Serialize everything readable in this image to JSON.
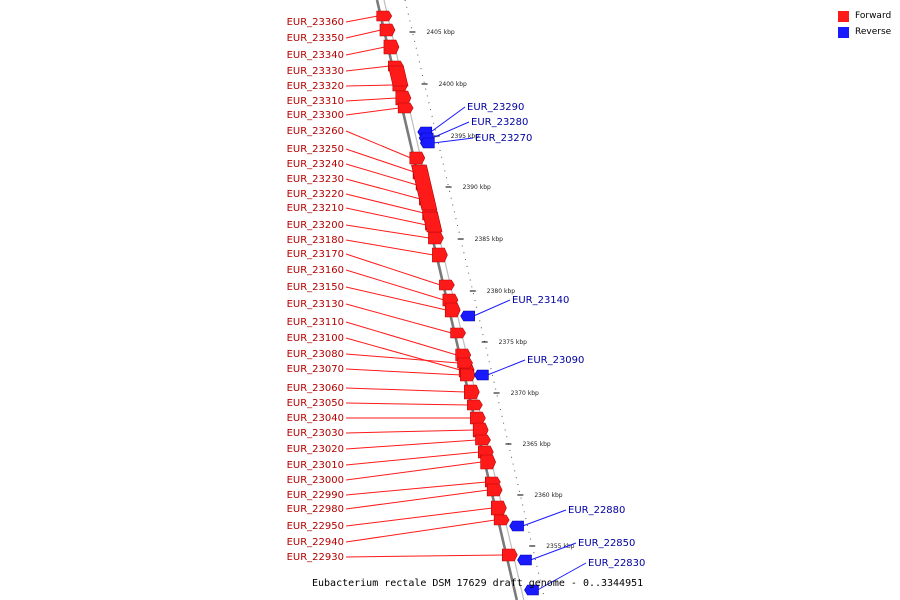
{
  "legend": {
    "forward_label": "Forward",
    "forward_color": "#ff1a1a",
    "reverse_label": "Reverse",
    "reverse_color": "#1a1aff"
  },
  "caption": {
    "organism": "Eubacterium rectale DSM 17629 draft genome",
    "range_text": "0..3344951"
  },
  "ticks": [
    "2405 kbp",
    "2400 kbp",
    "2395 kbp",
    "2390 kbp",
    "2385 kbp",
    "2380 kbp",
    "2375 kbp",
    "2370 kbp",
    "2365 kbp",
    "2360 kbp",
    "2355 kbp"
  ],
  "forward_genes": [
    "EUR_23360",
    "EUR_23350",
    "EUR_23340",
    "EUR_23330",
    "EUR_23320",
    "EUR_23310",
    "EUR_23300",
    "EUR_23260",
    "EUR_23250",
    "EUR_23240",
    "EUR_23230",
    "EUR_23220",
    "EUR_23210",
    "EUR_23200",
    "EUR_23180",
    "EUR_23170",
    "EUR_23160",
    "EUR_23150",
    "EUR_23130",
    "EUR_23110",
    "EUR_23100",
    "EUR_23080",
    "EUR_23070",
    "EUR_23060",
    "EUR_23050",
    "EUR_23040",
    "EUR_23030",
    "EUR_23020",
    "EUR_23010",
    "EUR_23000",
    "EUR_22990",
    "EUR_22980",
    "EUR_22950",
    "EUR_22940",
    "EUR_22930"
  ],
  "reverse_genes": [
    "EUR_23290",
    "EUR_23280",
    "EUR_23270",
    "EUR_23140",
    "EUR_23090",
    "EUR_22880",
    "EUR_22850",
    "EUR_22830"
  ]
}
